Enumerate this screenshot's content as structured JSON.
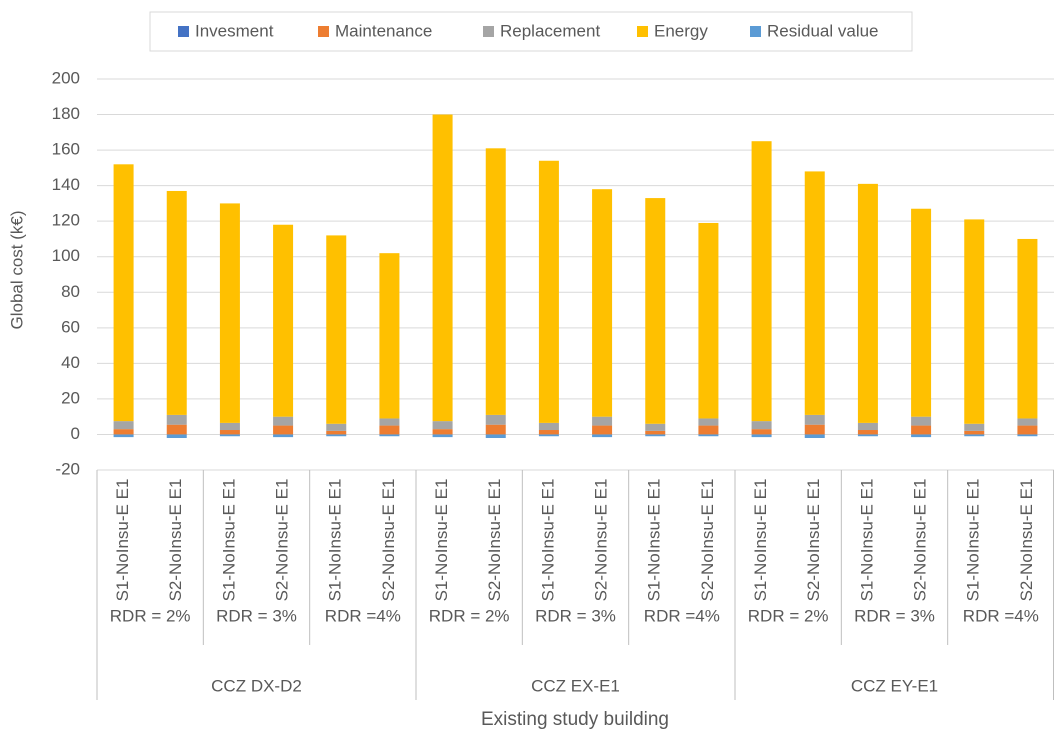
{
  "chart_data": {
    "type": "stacked_bar",
    "x_label": "Existing study building",
    "y_label": "Global cost (k€)",
    "categories": [
      "S1-NoInsu-E E1",
      "S2-NoInsu-E E1",
      "S1-NoInsu-E E1",
      "S2-NoInsu-E E1",
      "S1-NoInsu-E E1",
      "S2-NoInsu-E E1",
      "S1-NoInsu-E E1",
      "S2-NoInsu-E E1",
      "S1-NoInsu-E E1",
      "S2-NoInsu-E E1",
      "S1-NoInsu-E E1",
      "S2-NoInsu-E E1",
      "S1-NoInsu-E E1",
      "S2-NoInsu-E E1",
      "S1-NoInsu-E E1",
      "S2-NoInsu-E E1",
      "S1-NoInsu-E E1",
      "S2-NoInsu-E E1"
    ],
    "category_groups": [
      {
        "name": "CCZ DX-D2",
        "subgroups": [
          "RDR = 2%",
          "RDR = 3%",
          "RDR =4%"
        ]
      },
      {
        "name": "CCZ EX-E1",
        "subgroups": [
          "RDR = 2%",
          "RDR = 3%",
          "RDR =4%"
        ]
      },
      {
        "name": "CCZ EY-E1",
        "subgroups": [
          "RDR = 2%",
          "RDR = 3%",
          "RDR =4%"
        ]
      }
    ],
    "series": [
      {
        "name": "Invesment",
        "color": "#4472c4",
        "values": [
          0,
          0,
          0,
          0,
          0,
          0,
          0,
          0,
          0,
          0,
          0,
          0,
          0,
          0,
          0,
          0,
          0,
          0
        ]
      },
      {
        "name": "Maintenance",
        "color": "#ed7d31",
        "values": [
          3,
          5.5,
          2.5,
          5,
          2,
          5,
          3,
          5.5,
          2.5,
          5,
          2,
          5,
          3,
          5.5,
          2.5,
          5,
          2,
          5
        ]
      },
      {
        "name": "Replacement",
        "color": "#a5a5a5",
        "values": [
          4.5,
          5.5,
          4,
          5,
          4,
          4,
          4.5,
          5.5,
          4,
          5,
          4,
          4,
          4.5,
          5.5,
          4,
          5,
          4,
          4
        ]
      },
      {
        "name": "Energy",
        "color": "#ffc000",
        "values": [
          144.5,
          126,
          123.5,
          108,
          106,
          93,
          172.5,
          150,
          147.5,
          128,
          127,
          110,
          157.5,
          137,
          134.5,
          117,
          115,
          101
        ]
      },
      {
        "name": "Residual value",
        "color": "#5b9bd5",
        "values": [
          -1.5,
          -2,
          -1,
          -1.5,
          -1,
          -1,
          -1.5,
          -2,
          -1,
          -1.5,
          -1,
          -1,
          -1.5,
          -2,
          -1,
          -1.5,
          -1,
          -1
        ]
      }
    ],
    "ylim": [
      -20,
      200
    ],
    "yticks": [
      -20,
      0,
      20,
      40,
      60,
      80,
      100,
      120,
      140,
      160,
      180,
      200
    ],
    "grid": true,
    "legend": "top"
  }
}
